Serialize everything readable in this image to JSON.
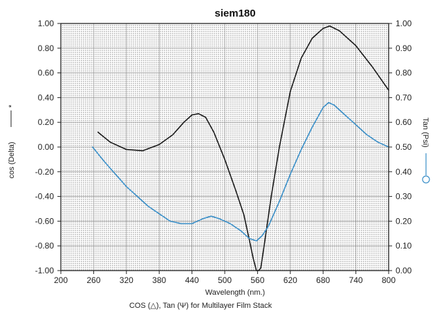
{
  "chart_data": {
    "type": "line",
    "title": "siem180",
    "xlabel": "Wavelength (nm.)",
    "ylabel_left": "cos (Delta)",
    "ylabel_left_marker": "*",
    "ylabel_right": "Tan (Psi)",
    "caption": "COS (△), Tan (Ψ) for Multilayer Film Stack",
    "xlim": [
      200,
      800
    ],
    "ylim_left": [
      -1.0,
      1.0
    ],
    "ylim_right": [
      0.0,
      1.0
    ],
    "x_ticks": [
      "200",
      "260",
      "320",
      "380",
      "440",
      "500",
      "560",
      "620",
      "680",
      "740",
      "800"
    ],
    "y_left_ticks": [
      "1.00",
      "0.80",
      "0.60",
      "0.40",
      "0.20",
      "0.00",
      "-0.20",
      "-0.40",
      "-0.60",
      "-0.80",
      "-1.00"
    ],
    "y_right_ticks": [
      "1.00",
      "0.90",
      "0.80",
      "0.70",
      "0.60",
      "0.50",
      "0.40",
      "0.30",
      "0.20",
      "0.10",
      "0.00"
    ],
    "grid": true,
    "colors": {
      "cos_delta": "#1a1a1a",
      "tan_psi": "#3a8fc8",
      "axis": "#222222"
    },
    "series": [
      {
        "axis": "left",
        "x": [
          268,
          290,
          320,
          350,
          380,
          405,
          425,
          440,
          452,
          465,
          480,
          500,
          520,
          535,
          545,
          552,
          558,
          562,
          566,
          572,
          585,
          600,
          620,
          640,
          660,
          680,
          692,
          710,
          740,
          770,
          800
        ],
        "values": [
          0.12,
          0.04,
          -0.02,
          -0.03,
          0.02,
          0.1,
          0.2,
          0.26,
          0.27,
          0.24,
          0.12,
          -0.1,
          -0.35,
          -0.55,
          -0.75,
          -0.9,
          -1.0,
          -1.0,
          -0.98,
          -0.8,
          -0.4,
          0.0,
          0.45,
          0.72,
          0.88,
          0.96,
          0.98,
          0.94,
          0.82,
          0.65,
          0.46
        ]
      },
      {
        "axis": "right",
        "x": [
          258,
          280,
          300,
          320,
          340,
          360,
          380,
          400,
          420,
          440,
          460,
          475,
          490,
          510,
          530,
          545,
          558,
          568,
          580,
          600,
          620,
          640,
          660,
          680,
          690,
          700,
          720,
          740,
          760,
          780,
          800
        ],
        "values": [
          0.5,
          0.44,
          0.39,
          0.34,
          0.3,
          0.26,
          0.23,
          0.2,
          0.19,
          0.19,
          0.21,
          0.22,
          0.21,
          0.19,
          0.16,
          0.13,
          0.12,
          0.14,
          0.18,
          0.28,
          0.39,
          0.49,
          0.58,
          0.66,
          0.68,
          0.67,
          0.63,
          0.59,
          0.55,
          0.52,
          0.5
        ]
      }
    ]
  }
}
